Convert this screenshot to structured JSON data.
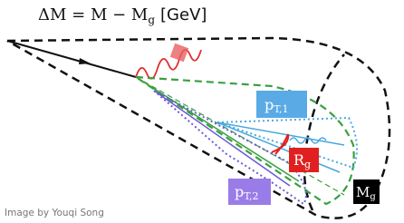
{
  "title": {
    "lead": "ΔM = M − M",
    "sub": "g",
    "unit": "[GeV]"
  },
  "labels": {
    "pt1": {
      "main": "p",
      "sub": "T,1"
    },
    "rg": {
      "main": "R",
      "sub": "g"
    },
    "pt2": {
      "main": "p",
      "sub": "T,2"
    },
    "mg": {
      "main": "M",
      "sub": "g"
    }
  },
  "credit": "Image by Youqi Song"
}
